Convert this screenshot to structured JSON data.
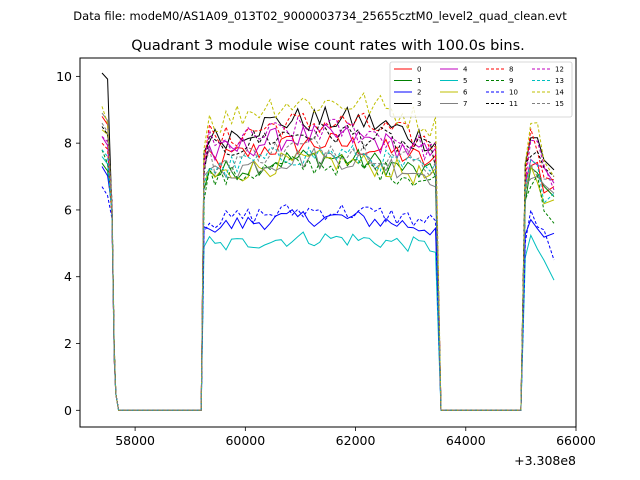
{
  "header": {
    "data_file": "Data file: modeM0/AS1A09_013T02_9000003734_25655cztM0_level2_quad_clean.evt"
  },
  "chart_data": {
    "type": "line",
    "title": "Quadrant 3 module wise count rates with 100.0s bins.",
    "xlabel": "",
    "ylabel": "",
    "x_offset_label": "+3.308e8",
    "xlim": [
      57000,
      66000
    ],
    "ylim": [
      -0.5,
      10.55
    ],
    "xticks": [
      58000,
      60000,
      62000,
      64000,
      66000
    ],
    "xtick_labels": [
      "58000",
      "60000",
      "62000",
      "64000",
      "66000"
    ],
    "yticks": [
      0,
      2,
      4,
      6,
      8,
      10
    ],
    "ytick_labels": [
      "0",
      "2",
      "4",
      "6",
      "8",
      "10"
    ],
    "legend": {
      "placement": "top-right",
      "columns": 4
    },
    "segments": [
      {
        "start": 57400,
        "end": 57700
      },
      {
        "start": 59200,
        "end": 63550
      },
      {
        "start": 65000,
        "end": 65600
      }
    ],
    "series": [
      {
        "name": "0",
        "color": "#ff0000",
        "dashed": false,
        "level": 8.0,
        "start": 8.8,
        "end": 6.7
      },
      {
        "name": "1",
        "color": "#008000",
        "dashed": false,
        "level": 7.6,
        "start": 7.4,
        "end": 6.4
      },
      {
        "name": "2",
        "color": "#0000ff",
        "dashed": false,
        "level": 5.9,
        "start": 7.3,
        "end": 5.3
      },
      {
        "name": "3",
        "color": "#000000",
        "dashed": false,
        "level": 8.7,
        "start": 10.1,
        "end": 7.2
      },
      {
        "name": "4",
        "color": "#bf00bf",
        "dashed": false,
        "level": 8.2,
        "start": 8.2,
        "end": 6.8
      },
      {
        "name": "5",
        "color": "#00bfbf",
        "dashed": false,
        "level": 5.3,
        "start": 7.6,
        "end": 3.9
      },
      {
        "name": "6",
        "color": "#bfbf00",
        "dashed": false,
        "level": 7.5,
        "start": 8.4,
        "end": 6.3
      },
      {
        "name": "7",
        "color": "#808080",
        "dashed": false,
        "level": 7.6,
        "start": 8.9,
        "end": 6.5
      },
      {
        "name": "8",
        "color": "#ff0000",
        "dashed": true,
        "level": 8.6,
        "start": 8.0,
        "end": 6.9
      },
      {
        "name": "9",
        "color": "#008000",
        "dashed": true,
        "level": 7.4,
        "start": 7.8,
        "end": 5.6
      },
      {
        "name": "10",
        "color": "#0000ff",
        "dashed": true,
        "level": 6.1,
        "start": 6.7,
        "end": 4.5
      },
      {
        "name": "11",
        "color": "#000000",
        "dashed": true,
        "level": 8.3,
        "start": 8.5,
        "end": 7.0
      },
      {
        "name": "12",
        "color": "#bf00bf",
        "dashed": true,
        "level": 8.4,
        "start": 8.2,
        "end": 6.6
      },
      {
        "name": "13",
        "color": "#00bfbf",
        "dashed": true,
        "level": 7.7,
        "start": 7.8,
        "end": 6.5
      },
      {
        "name": "14",
        "color": "#bfbf00",
        "dashed": true,
        "level": 9.2,
        "start": 9.1,
        "end": 7.0
      },
      {
        "name": "15",
        "color": "#808080",
        "dashed": true,
        "level": 7.9,
        "start": 8.6,
        "end": 6.9
      }
    ]
  }
}
